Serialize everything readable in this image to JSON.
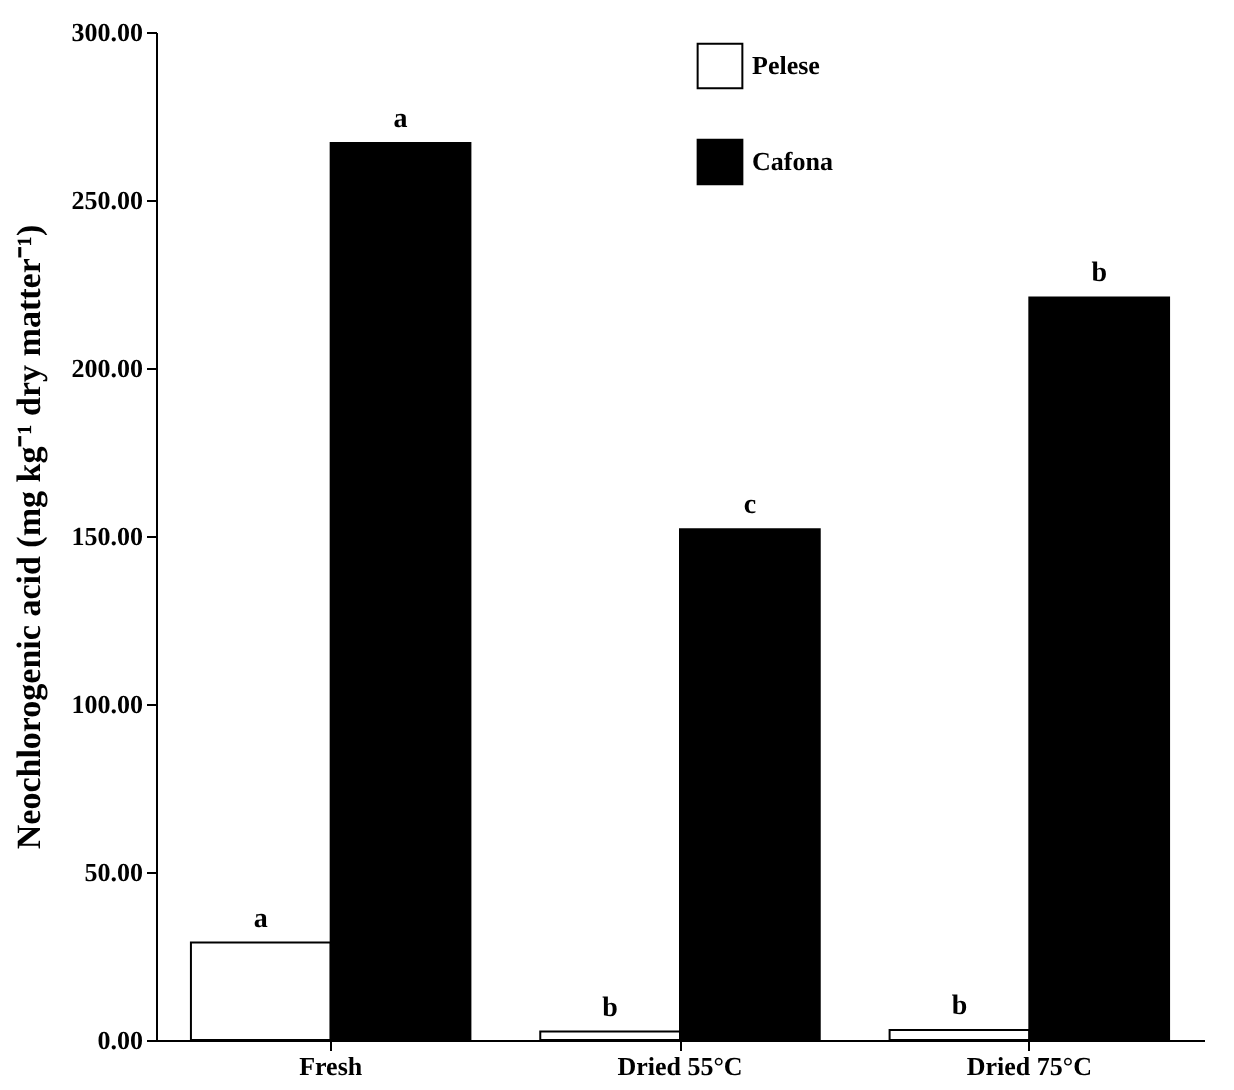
{
  "chart_data": {
    "type": "bar",
    "ylabel": "Neochlorogenic acid (mg kg⁻¹ dry matter⁻¹)",
    "categories": [
      "Fresh",
      "Dried 55°C",
      "Dried 75°C"
    ],
    "series": [
      {
        "name": "Pelese",
        "color": "#ffffff",
        "values": [
          29,
          2.5,
          3
        ],
        "value_labels": [
          "a",
          "b",
          "b"
        ]
      },
      {
        "name": "Cafona",
        "color": "#000000",
        "values": [
          267,
          152,
          221
        ],
        "value_labels": [
          "a",
          "c",
          "b"
        ]
      }
    ],
    "ylim": [
      0,
      300
    ],
    "yticks": [
      {
        "value": 0,
        "label": "0.00"
      },
      {
        "value": 50,
        "label": "50.00"
      },
      {
        "value": 100,
        "label": "100.00"
      },
      {
        "value": 150,
        "label": "150.00"
      },
      {
        "value": 200,
        "label": "200.00"
      },
      {
        "value": 250,
        "label": "250.00"
      },
      {
        "value": 300,
        "label": "300.00"
      }
    ],
    "grid": false,
    "legend": "top"
  }
}
